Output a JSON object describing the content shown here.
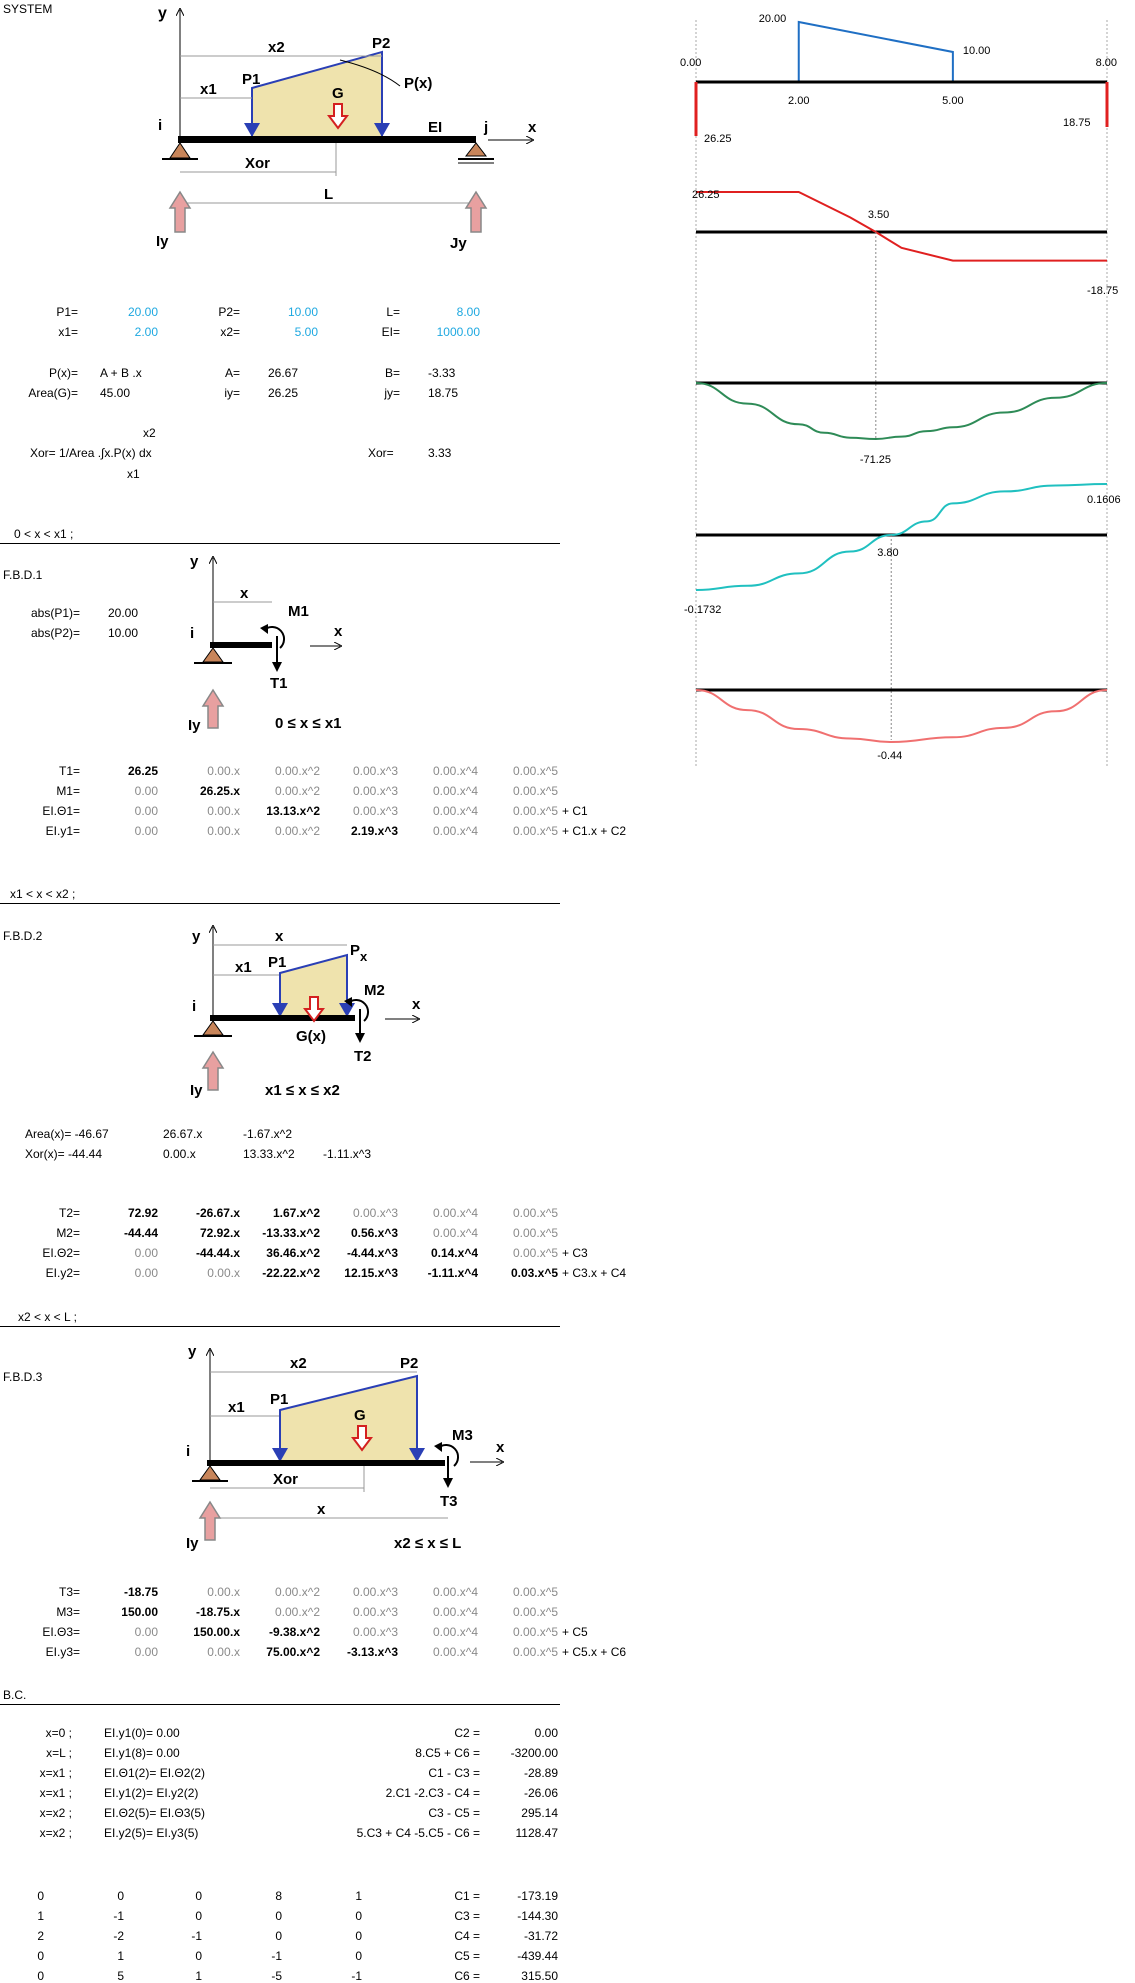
{
  "labels": {
    "system": "SYSTEM",
    "fbd1": "F.B.D.1",
    "fbd2": "F.B.D.2",
    "fbd3": "F.B.D.3",
    "bc": "B.C.",
    "seg1": "0 < x < x1 ;",
    "seg2": "x1 < x < x2 ;",
    "seg3": "x2 < x < L ;"
  },
  "system_diagram": {
    "y": "y",
    "x": "x",
    "x1": "x1",
    "x2": "x2",
    "P1": "P1",
    "P2": "P2",
    "Px": "P(x)",
    "G": "G",
    "i": "i",
    "j": "j",
    "EI": "EI",
    "Xor": "Xor",
    "L": "L",
    "Iy": "Iy",
    "Jy": "Jy"
  },
  "inputs": [
    {
      "label": "P1=",
      "value": "20.00"
    },
    {
      "label": "x1=",
      "value": "2.00"
    },
    {
      "label": "P2=",
      "value": "10.00"
    },
    {
      "label": "x2=",
      "value": "5.00"
    },
    {
      "label": "L=",
      "value": "8.00"
    },
    {
      "label": "EI=",
      "value": "1000.00"
    }
  ],
  "derived": {
    "px_label": "P(x)=",
    "px_value": "A + B .x",
    "area_label": "Area(G)=",
    "area_value": "45.00",
    "a_label": "A=",
    "a_value": "26.67",
    "iy_label": "iy=",
    "iy_value": "26.25",
    "b_label": "B=",
    "b_value": "-3.33",
    "jy_label": "jy=",
    "jy_value": "18.75",
    "xor_formula": "Xor= 1/Area .∫x.P(x) dx",
    "xor_upper": "x2",
    "xor_lower": "x1",
    "xor_label": "Xor=",
    "xor_value": "3.33"
  },
  "fbd1": {
    "y": "y",
    "x": "x",
    "xdim": "x",
    "M": "M1",
    "T": "T1",
    "i": "i",
    "Iy": "Iy",
    "range": "0 ≤ x ≤ x1",
    "abs_p1_label": "abs(P1)=",
    "abs_p1_value": "20.00",
    "abs_p2_label": "abs(P2)=",
    "abs_p2_value": "10.00"
  },
  "fbd2": {
    "y": "y",
    "x": "x",
    "xdim": "x",
    "x1": "x1",
    "P1": "P1",
    "Px": "P",
    "Pxs": "x",
    "M": "M2",
    "T": "T2",
    "G": "G(x)",
    "i": "i",
    "Iy": "Iy",
    "range": "x1 ≤ x ≤  x2"
  },
  "area_rows": [
    [
      "Area(x)= -46.67",
      "26.67.x",
      "-1.67.x^2",
      ""
    ],
    [
      "Xor(x)= -44.44",
      "0.00.x",
      "13.33.x^2",
      "-1.11.x^3"
    ]
  ],
  "fbd3": {
    "y": "y",
    "x": "x",
    "x2": "x2",
    "x1": "x1",
    "P1": "P1",
    "P2": "P2",
    "G": "G",
    "M": "M3",
    "T": "T3",
    "i": "i",
    "Xor": "Xor",
    "xdim": "x",
    "Iy": "Iy",
    "range": "x2  ≤ x ≤ L"
  },
  "eq_tables": [
    {
      "rows": [
        {
          "label": "T1=",
          "cells": [
            {
              "v": "26.25",
              "b": true
            },
            {
              "v": "0.00.x",
              "b": false
            },
            {
              "v": "0.00.x^2",
              "b": false
            },
            {
              "v": "0.00.x^3",
              "b": false
            },
            {
              "v": "0.00.x^4",
              "b": false
            },
            {
              "v": "0.00.x^5",
              "b": false
            }
          ],
          "tail": ""
        },
        {
          "label": "M1=",
          "cells": [
            {
              "v": "0.00",
              "b": false
            },
            {
              "v": "26.25.x",
              "b": true
            },
            {
              "v": "0.00.x^2",
              "b": false
            },
            {
              "v": "0.00.x^3",
              "b": false
            },
            {
              "v": "0.00.x^4",
              "b": false
            },
            {
              "v": "0.00.x^5",
              "b": false
            }
          ],
          "tail": ""
        },
        {
          "label": "EI.Θ1=",
          "cells": [
            {
              "v": "0.00",
              "b": false
            },
            {
              "v": "0.00.x",
              "b": false
            },
            {
              "v": "13.13.x^2",
              "b": true
            },
            {
              "v": "0.00.x^3",
              "b": false
            },
            {
              "v": "0.00.x^4",
              "b": false
            },
            {
              "v": "0.00.x^5",
              "b": false
            }
          ],
          "tail": "+ C1"
        },
        {
          "label": "EI.y1=",
          "cells": [
            {
              "v": "0.00",
              "b": false
            },
            {
              "v": "0.00.x",
              "b": false
            },
            {
              "v": "0.00.x^2",
              "b": false
            },
            {
              "v": "2.19.x^3",
              "b": true
            },
            {
              "v": "0.00.x^4",
              "b": false
            },
            {
              "v": "0.00.x^5",
              "b": false
            }
          ],
          "tail": "+ C1.x + C2"
        }
      ]
    },
    {
      "rows": [
        {
          "label": "T2=",
          "cells": [
            {
              "v": "72.92",
              "b": true
            },
            {
              "v": "-26.67.x",
              "b": true
            },
            {
              "v": "1.67.x^2",
              "b": true
            },
            {
              "v": "0.00.x^3",
              "b": false
            },
            {
              "v": "0.00.x^4",
              "b": false
            },
            {
              "v": "0.00.x^5",
              "b": false
            }
          ],
          "tail": ""
        },
        {
          "label": "M2=",
          "cells": [
            {
              "v": "-44.44",
              "b": true
            },
            {
              "v": "72.92.x",
              "b": true
            },
            {
              "v": "-13.33.x^2",
              "b": true
            },
            {
              "v": "0.56.x^3",
              "b": true
            },
            {
              "v": "0.00.x^4",
              "b": false
            },
            {
              "v": "0.00.x^5",
              "b": false
            }
          ],
          "tail": ""
        },
        {
          "label": "EI.Θ2=",
          "cells": [
            {
              "v": "0.00",
              "b": false
            },
            {
              "v": "-44.44.x",
              "b": true
            },
            {
              "v": "36.46.x^2",
              "b": true
            },
            {
              "v": "-4.44.x^3",
              "b": true
            },
            {
              "v": "0.14.x^4",
              "b": true
            },
            {
              "v": "0.00.x^5",
              "b": false
            }
          ],
          "tail": "+ C3"
        },
        {
          "label": "EI.y2=",
          "cells": [
            {
              "v": "0.00",
              "b": false
            },
            {
              "v": "0.00.x",
              "b": false
            },
            {
              "v": "-22.22.x^2",
              "b": true
            },
            {
              "v": "12.15.x^3",
              "b": true
            },
            {
              "v": "-1.11.x^4",
              "b": true
            },
            {
              "v": "0.03.x^5",
              "b": true
            }
          ],
          "tail": "+ C3.x + C4"
        }
      ]
    },
    {
      "rows": [
        {
          "label": "T3=",
          "cells": [
            {
              "v": "-18.75",
              "b": true
            },
            {
              "v": "0.00.x",
              "b": false
            },
            {
              "v": "0.00.x^2",
              "b": false
            },
            {
              "v": "0.00.x^3",
              "b": false
            },
            {
              "v": "0.00.x^4",
              "b": false
            },
            {
              "v": "0.00.x^5",
              "b": false
            }
          ],
          "tail": ""
        },
        {
          "label": "M3=",
          "cells": [
            {
              "v": "150.00",
              "b": true
            },
            {
              "v": "-18.75.x",
              "b": true
            },
            {
              "v": "0.00.x^2",
              "b": false
            },
            {
              "v": "0.00.x^3",
              "b": false
            },
            {
              "v": "0.00.x^4",
              "b": false
            },
            {
              "v": "0.00.x^5",
              "b": false
            }
          ],
          "tail": ""
        },
        {
          "label": "EI.Θ3=",
          "cells": [
            {
              "v": "0.00",
              "b": false
            },
            {
              "v": "150.00.x",
              "b": true
            },
            {
              "v": "-9.38.x^2",
              "b": true
            },
            {
              "v": "0.00.x^3",
              "b": false
            },
            {
              "v": "0.00.x^4",
              "b": false
            },
            {
              "v": "0.00.x^5",
              "b": false
            }
          ],
          "tail": "+ C5"
        },
        {
          "label": "EI.y3=",
          "cells": [
            {
              "v": "0.00",
              "b": false
            },
            {
              "v": "0.00.x",
              "b": false
            },
            {
              "v": "75.00.x^2",
              "b": true
            },
            {
              "v": "-3.13.x^3",
              "b": true
            },
            {
              "v": "0.00.x^4",
              "b": false
            },
            {
              "v": "0.00.x^5",
              "b": false
            }
          ],
          "tail": "+ C5.x + C6"
        }
      ]
    }
  ],
  "bc_rows": [
    {
      "cond": "x=0 ;",
      "eq": "EI.y1(0)= 0.00",
      "lhs": "C2 =",
      "val": "0.00"
    },
    {
      "cond": "x=L ;",
      "eq": "EI.y1(8)= 0.00",
      "lhs": "8.C5 + C6 =",
      "val": "-3200.00"
    },
    {
      "cond": "x=x1 ;",
      "eq": "EI.Θ1(2)= EI.Θ2(2)",
      "lhs": "C1 - C3 =",
      "val": "-28.89"
    },
    {
      "cond": "x=x1 ;",
      "eq": "EI.y1(2)= EI.y2(2)",
      "lhs": "2.C1 -2.C3 - C4 =",
      "val": "-26.06"
    },
    {
      "cond": "x=x2 ;",
      "eq": "EI.Θ2(5)= EI.Θ3(5)",
      "lhs": "C3 - C5 =",
      "val": "295.14"
    },
    {
      "cond": "x=x2 ;",
      "eq": "EI.y2(5)= EI.y3(5)",
      "lhs": "5.C3 + C4 -5.C5 - C6 =",
      "val": "1128.47"
    }
  ],
  "matrix_rows": [
    {
      "m": [
        "0",
        "0",
        "0",
        "8",
        "1"
      ],
      "c": "C1 =",
      "v": "-173.19"
    },
    {
      "m": [
        "1",
        "-1",
        "0",
        "0",
        "0"
      ],
      "c": "C3 =",
      "v": "-144.30"
    },
    {
      "m": [
        "2",
        "-2",
        "-1",
        "0",
        "0"
      ],
      "c": "C4 =",
      "v": "-31.72"
    },
    {
      "m": [
        "0",
        "1",
        "0",
        "-1",
        "0"
      ],
      "c": "C5 =",
      "v": "-439.44"
    },
    {
      "m": [
        "0",
        "5",
        "1",
        "-5",
        "-1"
      ],
      "c": "C6 =",
      "v": "315.50"
    }
  ],
  "chart_data": [
    {
      "type": "area",
      "name_en": "load",
      "color": "#1f6fc4",
      "x": [
        0,
        2,
        2,
        5,
        5,
        8
      ],
      "y": [
        0,
        0,
        20,
        10,
        0,
        0
      ],
      "point_labels": [
        {
          "x": 2,
          "y": 20,
          "text": "20.00"
        },
        {
          "x": 5,
          "y": 10,
          "text": "10.00"
        }
      ],
      "tick_labels": [
        "0.00",
        "2.00",
        "5.00",
        "8.00"
      ],
      "reactions": [
        {
          "x": 0,
          "text": "26.25"
        },
        {
          "x": 8,
          "text": "18.75"
        }
      ],
      "reaction_color": "#e02020"
    },
    {
      "type": "line",
      "name_en": "shear",
      "color": "#e02020",
      "x": [
        0,
        2,
        3,
        3.5,
        4,
        5,
        8
      ],
      "y": [
        26.25,
        26.25,
        9.58,
        0,
        -10.42,
        -18.75,
        -18.75
      ],
      "ylim": [
        -30,
        30
      ],
      "labels": [
        {
          "x": 0,
          "y": 26.25,
          "text": "26.25"
        },
        {
          "x": 3.5,
          "y": 0,
          "text": "3.50"
        },
        {
          "x": 8,
          "y": -18.75,
          "text": "-18.75"
        }
      ]
    },
    {
      "type": "line",
      "name_en": "moment",
      "color": "#2e8b57",
      "x": [
        0,
        1,
        2,
        2.5,
        3,
        3.5,
        4,
        4.5,
        5,
        6,
        7,
        8
      ],
      "y": [
        0,
        -26.25,
        -52.5,
        -63.3,
        -69.6,
        -71.25,
        -68.2,
        -61.2,
        -56.25,
        -37.5,
        -18.75,
        0
      ],
      "ylim": [
        -80,
        10
      ],
      "labels": [
        {
          "x": 3.5,
          "y": -71.25,
          "text": "-71.25"
        }
      ]
    },
    {
      "type": "line",
      "name_en": "slope",
      "color": "#20c0c0",
      "x": [
        0,
        1,
        2,
        3,
        3.8,
        4.5,
        5,
        6,
        7,
        8
      ],
      "y": [
        -0.1732,
        -0.16,
        -0.121,
        -0.052,
        0,
        0.043,
        0.0997,
        0.1372,
        0.1559,
        0.1606
      ],
      "ylim": [
        -0.2,
        0.2
      ],
      "labels": [
        {
          "x": 0,
          "y": -0.1732,
          "text": "-0.1732"
        },
        {
          "x": 3.8,
          "y": 0,
          "text": "3.80"
        },
        {
          "x": 8,
          "y": 0.1606,
          "text": "0.1606"
        }
      ]
    },
    {
      "type": "line",
      "name_en": "deflection",
      "color": "#f07070",
      "x": [
        0,
        1,
        2,
        3,
        3.8,
        5,
        6,
        7,
        8
      ],
      "y": [
        0,
        -0.17,
        -0.33,
        -0.41,
        -0.44,
        -0.4,
        -0.32,
        -0.18,
        0
      ],
      "ylim": [
        -0.6,
        0.1
      ],
      "labels": [
        {
          "x": 3.8,
          "y": -0.44,
          "text": "-0.44"
        }
      ]
    }
  ]
}
